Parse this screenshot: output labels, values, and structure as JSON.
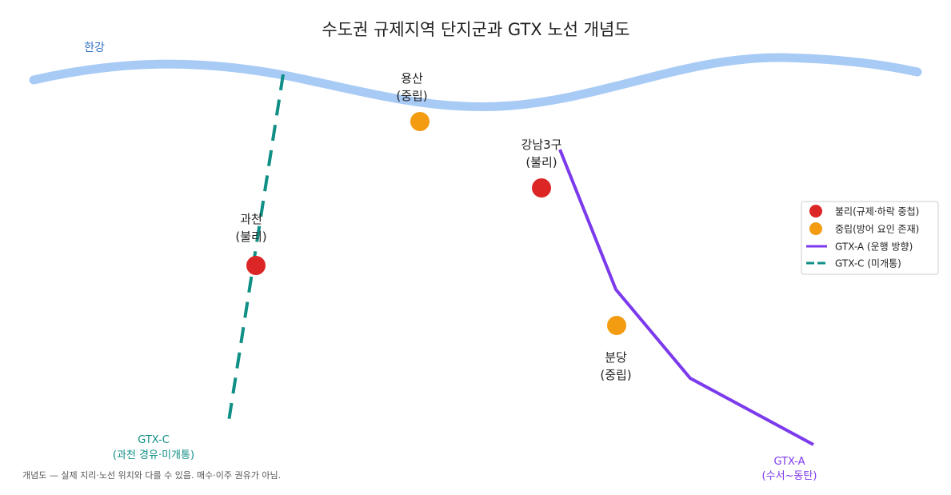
{
  "title": "수도권 규제지역 단지군과 GTX 노선 개념도",
  "river": {
    "label": "한강"
  },
  "nodes": [
    {
      "label": [
        "용산",
        "(중립)"
      ]
    },
    {
      "label": [
        "강남3구",
        "(불리)"
      ]
    },
    {
      "label": [
        "과천",
        "(불리)"
      ]
    },
    {
      "label": [
        "분당",
        "(중립)"
      ]
    }
  ],
  "lines": [
    {
      "label": [
        "GTX-C",
        "(과천 경유·미개통)"
      ]
    },
    {
      "label": [
        "GTX-A",
        "(수서~동탄)"
      ]
    }
  ],
  "legend": [
    "불리(규제·하락 중첩)",
    "중립(방어 요인 존재)",
    "GTX-A (운행 방향)",
    "GTX-C (미개통)"
  ],
  "footnote": "개념도 — 실제 지리·노선 위치와 다를 수 있음. 매수·이주 권유가 아님."
}
